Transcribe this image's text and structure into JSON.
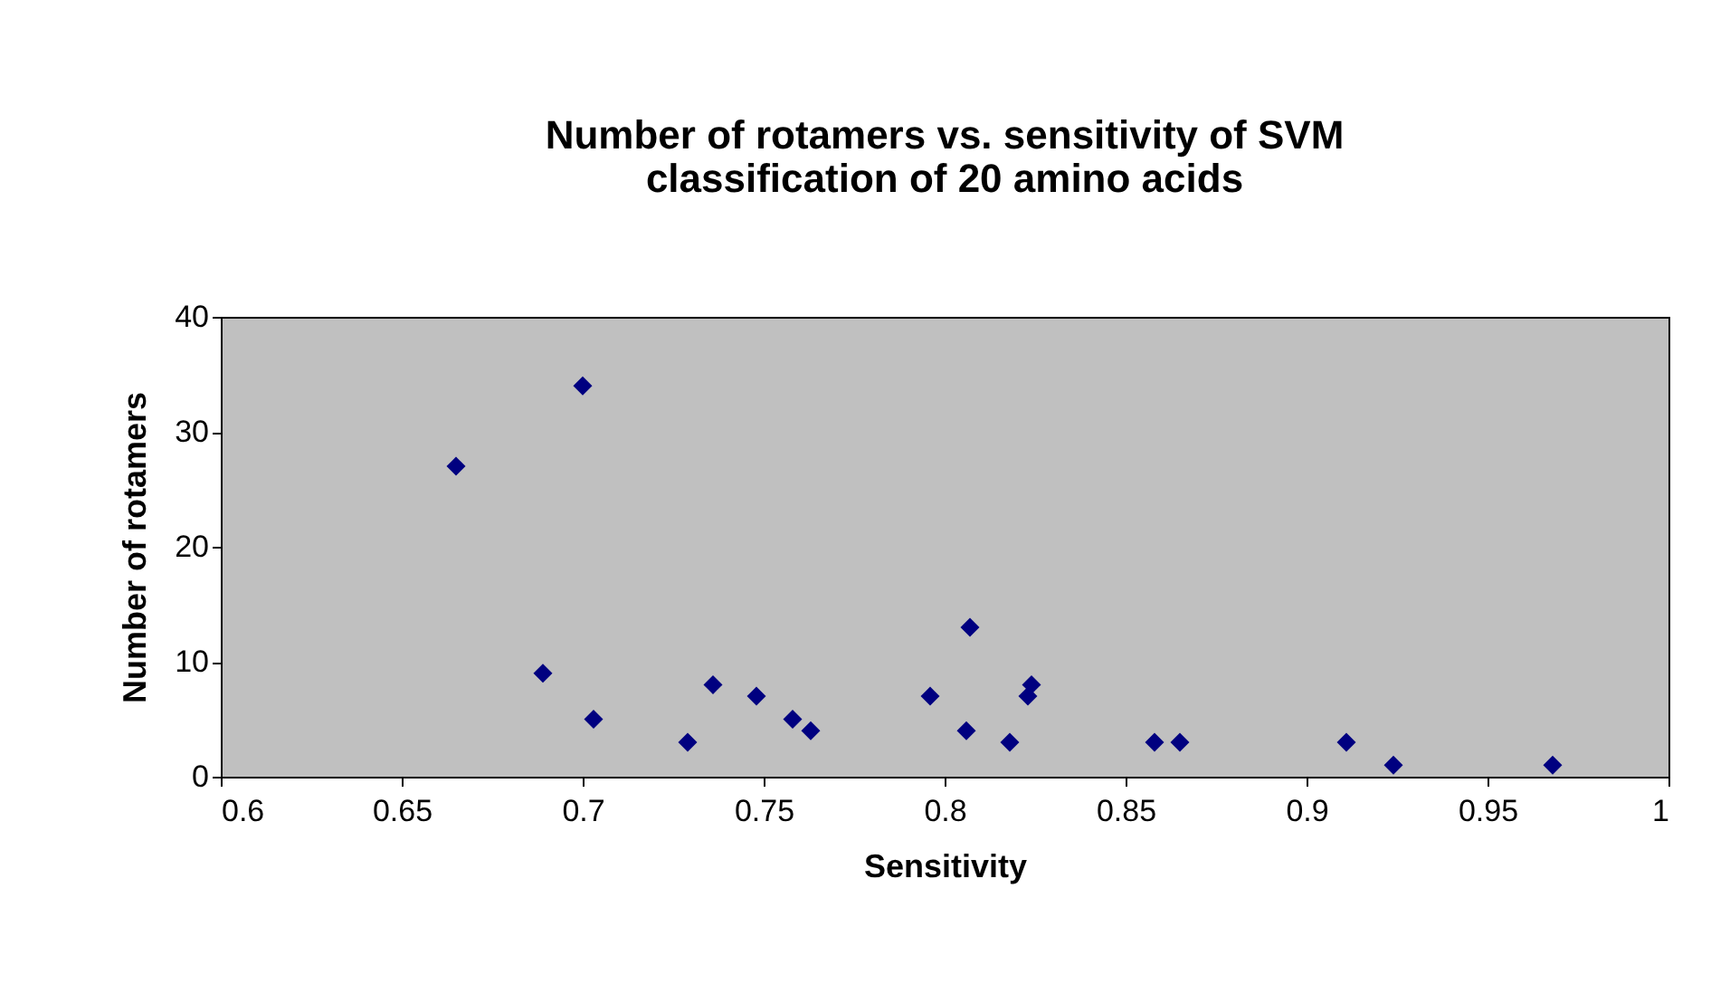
{
  "chart_data": {
    "type": "scatter",
    "title": "Number of rotamers vs. sensitivity of SVM classification of 20 amino acids",
    "xlabel": "Sensitivity",
    "ylabel": "Number of rotamers",
    "x": [
      0.665,
      0.689,
      0.7,
      0.703,
      0.729,
      0.736,
      0.748,
      0.758,
      0.763,
      0.796,
      0.806,
      0.807,
      0.818,
      0.823,
      0.824,
      0.858,
      0.865,
      0.911,
      0.924,
      0.968
    ],
    "series": [
      {
        "color": "#000080",
        "values": [
          27,
          9,
          34,
          5,
          3,
          8,
          7,
          5,
          4,
          7,
          4,
          13,
          3,
          7,
          8,
          3,
          3,
          3,
          1,
          1
        ]
      }
    ],
    "xlim": [
      0.6,
      1
    ],
    "xticks": [
      0.6,
      0.65,
      0.7,
      0.75,
      0.8,
      0.85,
      0.9,
      0.95,
      1
    ],
    "ylim": [
      0,
      40
    ],
    "yticks": [
      0,
      10,
      20,
      30,
      40
    ],
    "marker": "diamond",
    "grid": false
  }
}
